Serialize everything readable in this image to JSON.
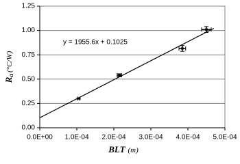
{
  "chart_data": {
    "type": "scatter",
    "x_label": {
      "main": "BLT",
      "unit": "(m)"
    },
    "y_label": {
      "main": "R",
      "sub": "a",
      "unit": "(°C/W)"
    },
    "series": [
      {
        "color": "#000000",
        "x": [
          0.000105,
          0.000215,
          0.000385,
          0.00045
        ],
        "values": [
          0.3,
          0.54,
          0.815,
          1.01
        ],
        "xerr": [
          3e-06,
          6e-06,
          9e-06,
          1.3e-05
        ],
        "yerr": [
          0.005,
          0.015,
          0.03,
          0.03
        ]
      }
    ],
    "trendline": {
      "label": "y = 1955.6x + 0.1025",
      "slope": 1955.6,
      "intercept": 0.1025,
      "xrange": [
        0,
        0.00047
      ]
    },
    "xlim": [
      0,
      0.0005
    ],
    "ylim": [
      0,
      1.25
    ],
    "xticks": [
      {
        "value": 0,
        "label": "0.0E+00"
      },
      {
        "value": 0.0001,
        "label": "1.0E-04"
      },
      {
        "value": 0.0002,
        "label": "2.0E-04"
      },
      {
        "value": 0.0003,
        "label": "3.0E-04"
      },
      {
        "value": 0.0004,
        "label": "4.0E-04"
      },
      {
        "value": 0.0005,
        "label": "5.0E-04"
      }
    ],
    "yticks": [
      {
        "value": 0,
        "label": "0.00"
      },
      {
        "value": 0.25,
        "label": "0.25"
      },
      {
        "value": 0.5,
        "label": "0.50"
      },
      {
        "value": 0.75,
        "label": "0.75"
      },
      {
        "value": 1,
        "label": "1.00"
      },
      {
        "value": 1.25,
        "label": "1.25"
      }
    ],
    "grid": true
  }
}
